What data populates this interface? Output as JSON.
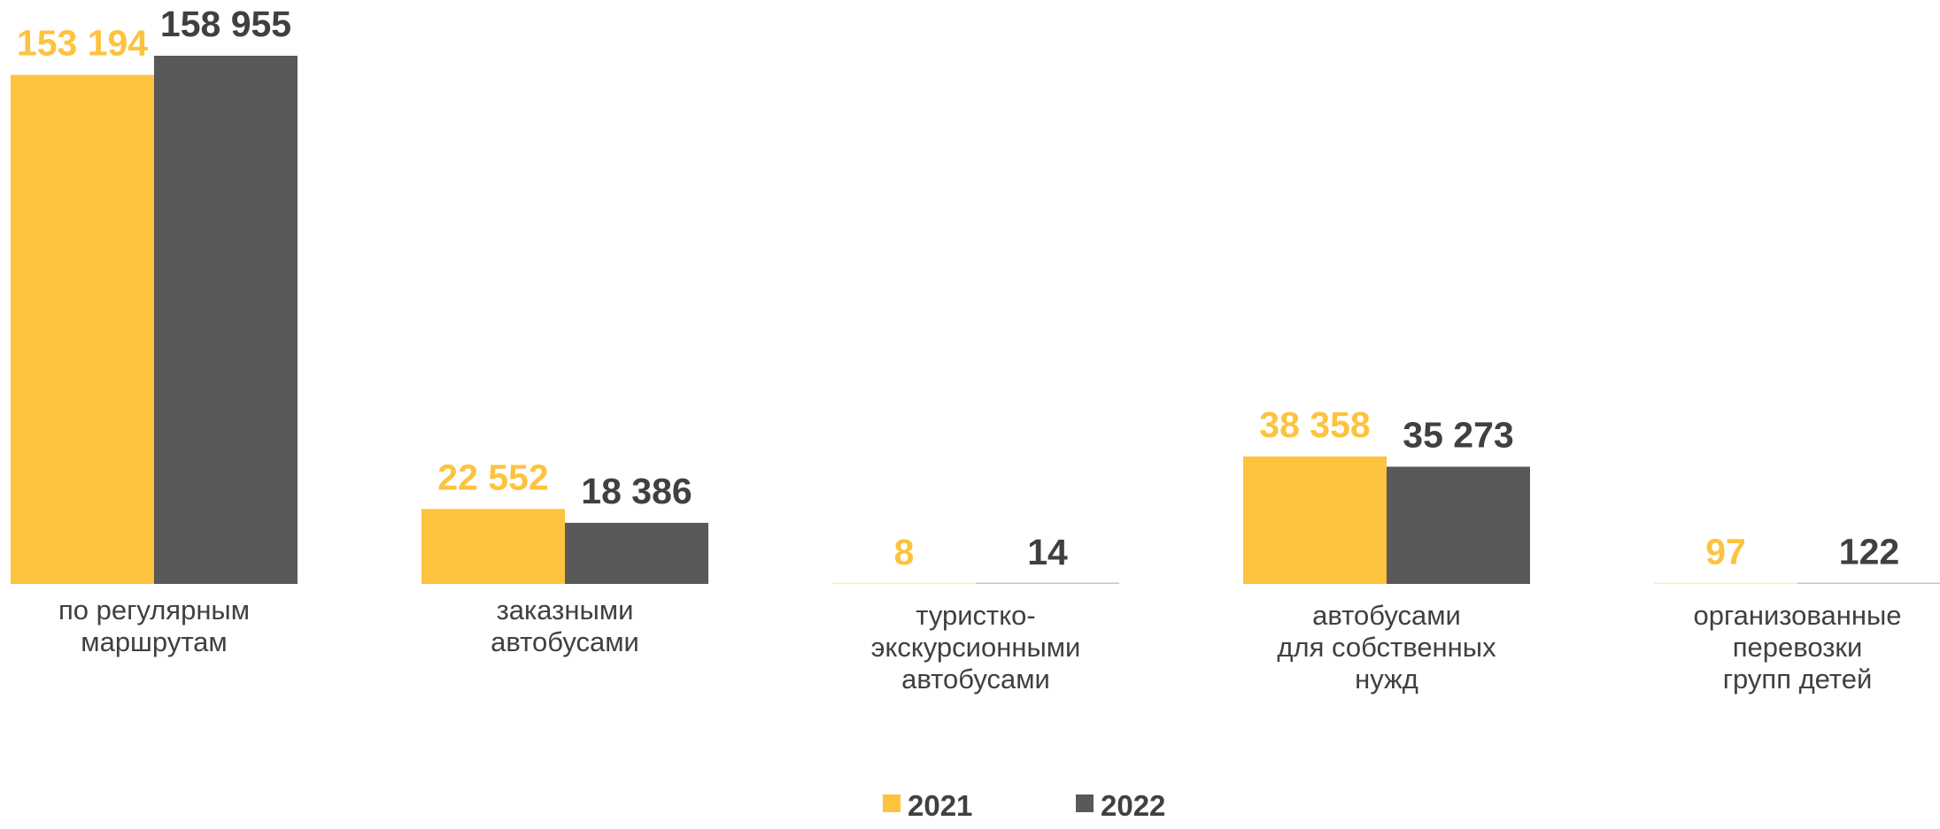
{
  "chart_data": {
    "type": "bar",
    "categories": [
      [
        "по регулярным",
        "маршрутам"
      ],
      [
        "заказными",
        "автобусами"
      ],
      [
        "туристко-",
        "экскурсионными",
        "автобусами"
      ],
      [
        "автобусами",
        "для собственных",
        "нужд"
      ],
      [
        "организованные",
        "перевозки",
        "групп детей"
      ]
    ],
    "series": [
      {
        "name": "2021",
        "color": "#FDC33E",
        "values": [
          153194,
          22552,
          8,
          38358,
          97
        ],
        "labels": [
          "153 194",
          "22 552",
          "8",
          "38 358",
          "97"
        ]
      },
      {
        "name": "2022",
        "color": "#595959",
        "values": [
          158955,
          18386,
          14,
          35273,
          122
        ],
        "labels": [
          "158 955",
          "18 386",
          "14",
          "35 273",
          "122"
        ]
      }
    ],
    "ylim": [
      0,
      158955
    ],
    "grid": false,
    "legend": "bottom-center"
  }
}
